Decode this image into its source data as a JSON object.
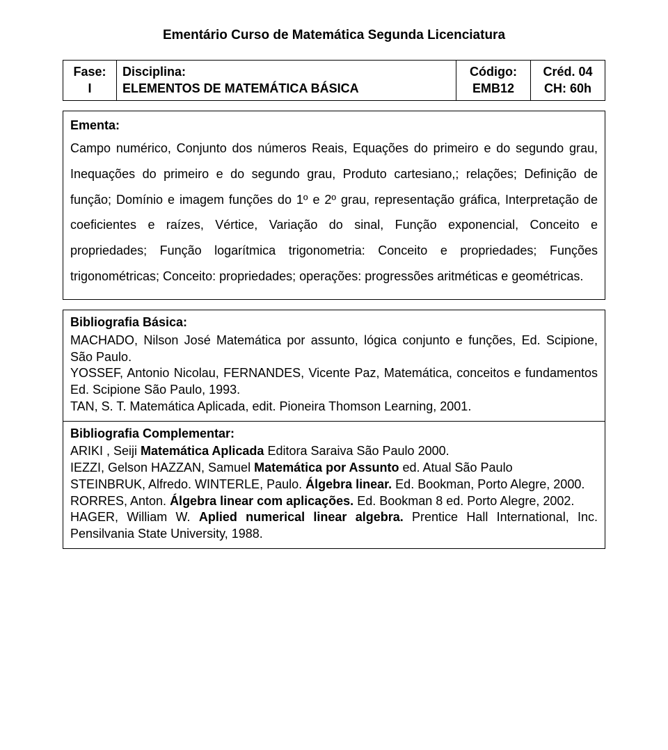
{
  "title": "Ementário Curso de Matemática Segunda Licenciatura",
  "header": {
    "fase_label": "Fase:",
    "fase_value": "I",
    "disciplina_label": "Disciplina:",
    "disciplina_value": "ELEMENTOS DE MATEMÁTICA BÁSICA",
    "codigo_label": "Código:",
    "codigo_value": "EMB12",
    "cred_label": "Créd. 04",
    "ch_label": "CH: 60h"
  },
  "ementa": {
    "label": "Ementa:",
    "text": "Campo numérico, Conjunto dos números Reais, Equações do primeiro e do segundo grau, Inequações do primeiro e do segundo grau, Produto cartesiano,; relações; Definição de função; Domínio e imagem funções do 1º e 2º grau, representação gráfica, Interpretação de coeficientes e raízes, Vértice, Variação do sinal, Função  exponencial, Conceito e propriedades; Função logarítmica trigonometria: Conceito e propriedades; Funções trigonométricas; Conceito: propriedades; operações:  progressões aritméticas e geométricas."
  },
  "bib": {
    "basica_heading": "Bibliografia Básica:",
    "basica_l1": "MACHADO, Nilson José Matemática por assunto, lógica conjunto e funções, Ed. Scipione, São Paulo.",
    "basica_l2": "YOSSEF, Antonio Nicolau, FERNANDES, Vicente Paz, Matemática, conceitos e fundamentos Ed. Scipione São Paulo, 1993.",
    "basica_l3": "TAN, S. T. Matemática Aplicada, edit. Pioneira Thomson Learning, 2001.",
    "compl_heading": "Bibliografia Complementar:",
    "compl_l1a": "ARIKI , Seiji ",
    "compl_l1b": "Matemática Aplicada",
    "compl_l1c": " Editora Saraiva São Paulo 2000.",
    "compl_l2a": "IEZZI, Gelson HAZZAN, Samuel ",
    "compl_l2b": "Matemática por Assunto",
    "compl_l2c": " ed. Atual São Paulo",
    "compl_l3a": "STEINBRUK, Alfredo. WINTERLE, Paulo. ",
    "compl_l3b": "Álgebra linear.",
    "compl_l3c": " Ed. Bookman, Porto Alegre, 2000.",
    "compl_l4a": "RORRES, Anton. ",
    "compl_l4b": "Álgebra linear com aplicações.",
    "compl_l4c": " Ed. Bookman 8 ed. Porto Alegre,  2002.",
    "compl_l5a": "HAGER, William W. ",
    "compl_l5b": "Aplied numerical linear algebra.",
    "compl_l5c": " Prentice Hall International, Inc. Pensilvania State University, 1988."
  }
}
